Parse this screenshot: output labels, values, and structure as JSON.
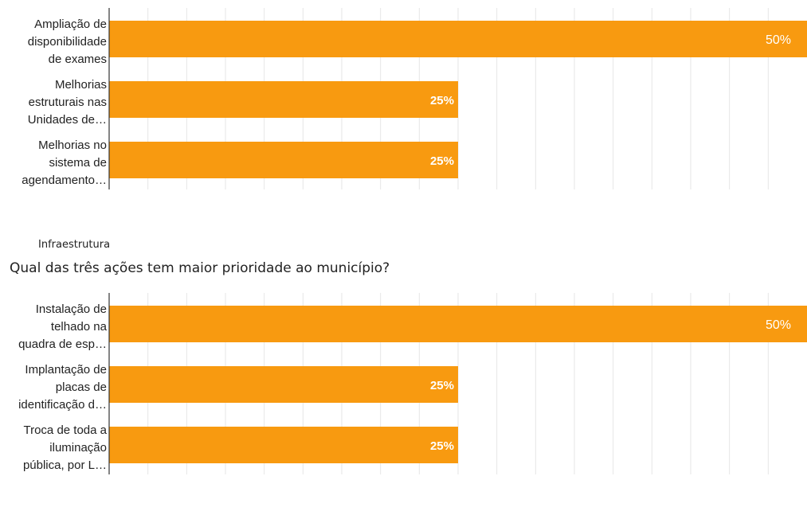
{
  "section": {
    "label": "Infraestrutura",
    "question": "Qual das três ações tem maior prioridade ao município?"
  },
  "colors": {
    "bar": "#f89a10",
    "grid": "#e6e6e6",
    "axis": "#333333",
    "label_text": "#222222",
    "value_text": "#ffffff"
  },
  "chart_data": [
    {
      "type": "bar",
      "orientation": "horizontal",
      "categories": [
        [
          "Ampliação de",
          "disponibilidade",
          "de exames"
        ],
        [
          "Melhorias",
          "estruturais nas",
          "Unidades de…"
        ],
        [
          "Melhorias no",
          "sistema de",
          "agendamento…"
        ]
      ],
      "values": [
        50,
        25,
        25
      ],
      "data_labels": [
        "50%",
        "25%",
        "25%"
      ],
      "xlim": [
        0,
        50
      ],
      "grid": true
    },
    {
      "type": "bar",
      "orientation": "horizontal",
      "categories": [
        [
          "Instalação de",
          "telhado na",
          "quadra de esp…"
        ],
        [
          "Implantação de",
          "placas de",
          "identificação d…"
        ],
        [
          "Troca de toda a",
          "iluminação",
          "pública, por L…"
        ]
      ],
      "values": [
        50,
        25,
        25
      ],
      "data_labels": [
        "50%",
        "25%",
        "25%"
      ],
      "xlim": [
        0,
        50
      ],
      "grid": true
    }
  ]
}
